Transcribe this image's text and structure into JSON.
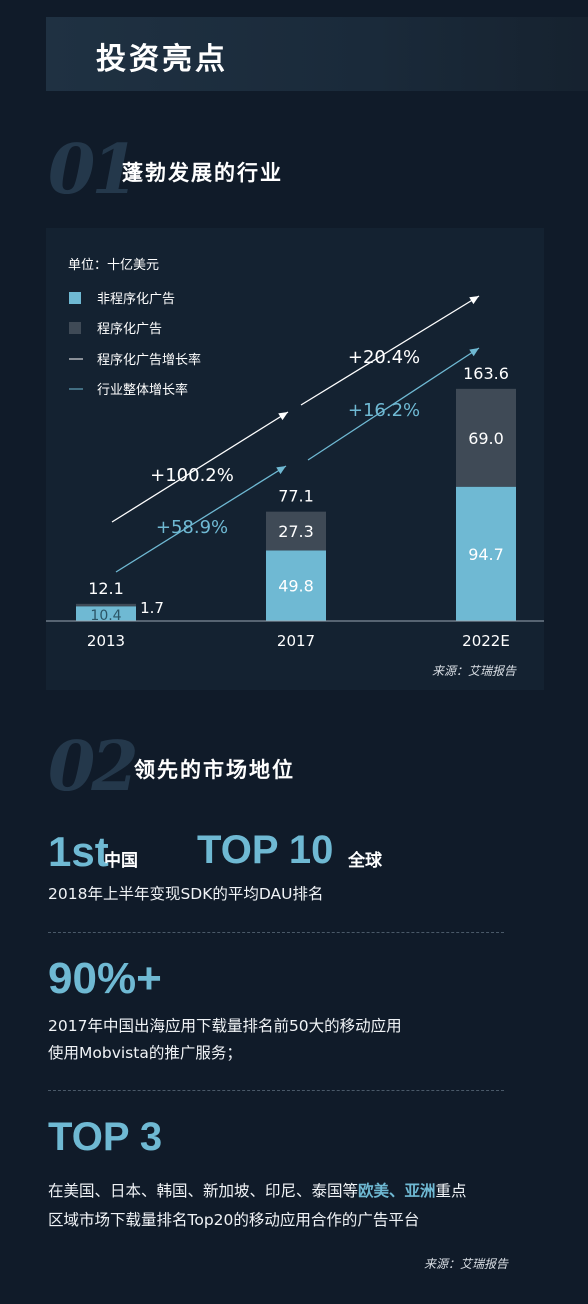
{
  "page": {
    "title": "投资亮点"
  },
  "sections": [
    {
      "num": "01",
      "title": "蓬勃发展的行业"
    },
    {
      "num": "02",
      "title": "领先的市场地位"
    }
  ],
  "chart_data": {
    "type": "bar",
    "stacked": true,
    "unit_label": "单位：十亿美元",
    "categories": [
      "2013",
      "2017",
      "2022E"
    ],
    "series": [
      {
        "name": "非程序化广告",
        "values": [
          10.4,
          49.8,
          94.7
        ],
        "color": "#6fb9d3"
      },
      {
        "name": "程序化广告",
        "values": [
          1.7,
          27.3,
          69.0
        ],
        "color": "#3f4a56"
      }
    ],
    "totals": [
      12.1,
      77.1,
      163.6
    ],
    "value_labels": {
      "totals": [
        "12.1",
        "77.1",
        "163.6"
      ],
      "non_programmatic": [
        "10.4",
        "49.8",
        "94.7"
      ],
      "programmatic": [
        "1.7",
        "27.3",
        "69.0"
      ]
    },
    "growth_lines": [
      {
        "name": "程序化广告增长率",
        "color": "#ffffff",
        "labels": [
          "+100.2%",
          "+20.4%"
        ]
      },
      {
        "name": "行业整体增长率",
        "color": "#6fb9d3",
        "labels": [
          "+58.9%",
          "+16.2%"
        ]
      }
    ],
    "legend_position": "top-left",
    "ylim": [
      0,
      170
    ],
    "grid": false,
    "source": "来源：艾瑞报告"
  },
  "stats": {
    "rank_china_value": "1st",
    "rank_china_suffix": "中国",
    "rank_global_value": "TOP 10",
    "rank_global_suffix": "全球",
    "rank_desc": "2018年上半年变现SDK的平均DAU排名",
    "share_value": "90%+",
    "share_desc_1": "2017年中国出海应用下载量排名前50大的移动应用",
    "share_desc_2": "使用Mobvista的推广服务；",
    "top3_value": "TOP 3",
    "top3_desc_1a": "在美国、日本、韩国、新加坡、印尼、泰国等",
    "top3_desc_1b": "欧美、亚洲",
    "top3_desc_1c": "重点",
    "top3_desc_2": "区域市场下载量排名Top20的移动应用合作的广告平台",
    "source": "来源：艾瑞报告"
  }
}
